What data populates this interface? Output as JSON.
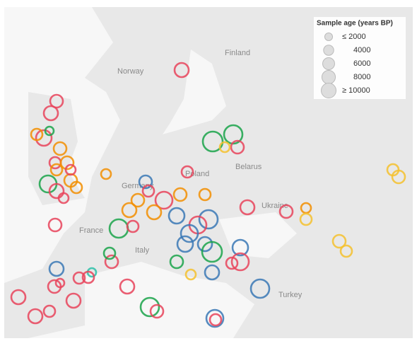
{
  "map": {
    "labels": [
      "Finland",
      "Norway",
      "Belarus",
      "Poland",
      "Germany",
      "Ukraine",
      "France",
      "Italy",
      "Turkey"
    ],
    "legend": {
      "title": "Sample age (years BP)",
      "sizes": [
        {
          "value": 2000,
          "label": "≤ 2000"
        },
        4000,
        6000,
        8000,
        {
          "value": 10000,
          "label": "≥ 10000"
        }
      ]
    }
  }
}
